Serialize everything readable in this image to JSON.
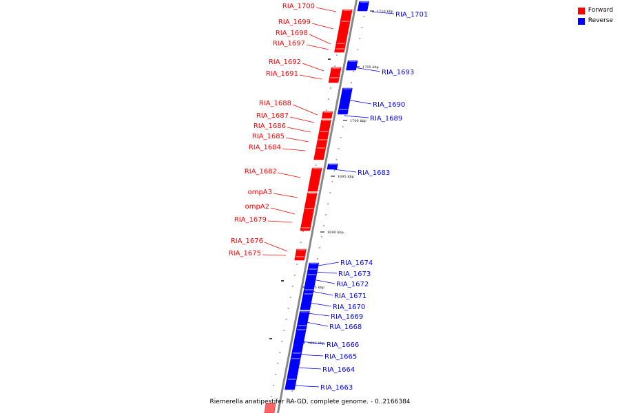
{
  "legend": [
    {
      "label": "Forward",
      "color": "#ff0000"
    },
    {
      "label": "Reverse",
      "color": "#0000ff"
    }
  ],
  "caption": "Riemerella anatipestifer RA-GD, complete genome. - 0..2166384",
  "colors": {
    "forward": "#ff0000",
    "reverse": "#0000ff",
    "backbone": "#888888"
  },
  "kbp_markers": [
    "1710 kbp",
    "1705 kbp",
    "1700 kbp",
    "1695 kbp",
    "1690 kbp",
    "1685 kbp",
    "1680 kbp"
  ],
  "forward_genes": [
    "RIA_1700",
    "RIA_1699",
    "RIA_1698",
    "RIA_1697",
    "RIA_1692",
    "RIA_1691",
    "RIA_1688",
    "RIA_1687",
    "RIA_1686",
    "RIA_1685",
    "RIA_1684",
    "RIA_1682",
    "ompA3",
    "ompA2",
    "RIA_1679",
    "RIA_1676",
    "RIA_1675"
  ],
  "reverse_genes": [
    "RIA_1701",
    "RIA_1693",
    "RIA_1690",
    "RIA_1689",
    "RIA_1683",
    "RIA_1674",
    "RIA_1673",
    "RIA_1672",
    "RIA_1671",
    "RIA_1670",
    "RIA_1669",
    "RIA_1668",
    "RIA_1666",
    "RIA_1665",
    "RIA_1664",
    "RIA_1663"
  ]
}
